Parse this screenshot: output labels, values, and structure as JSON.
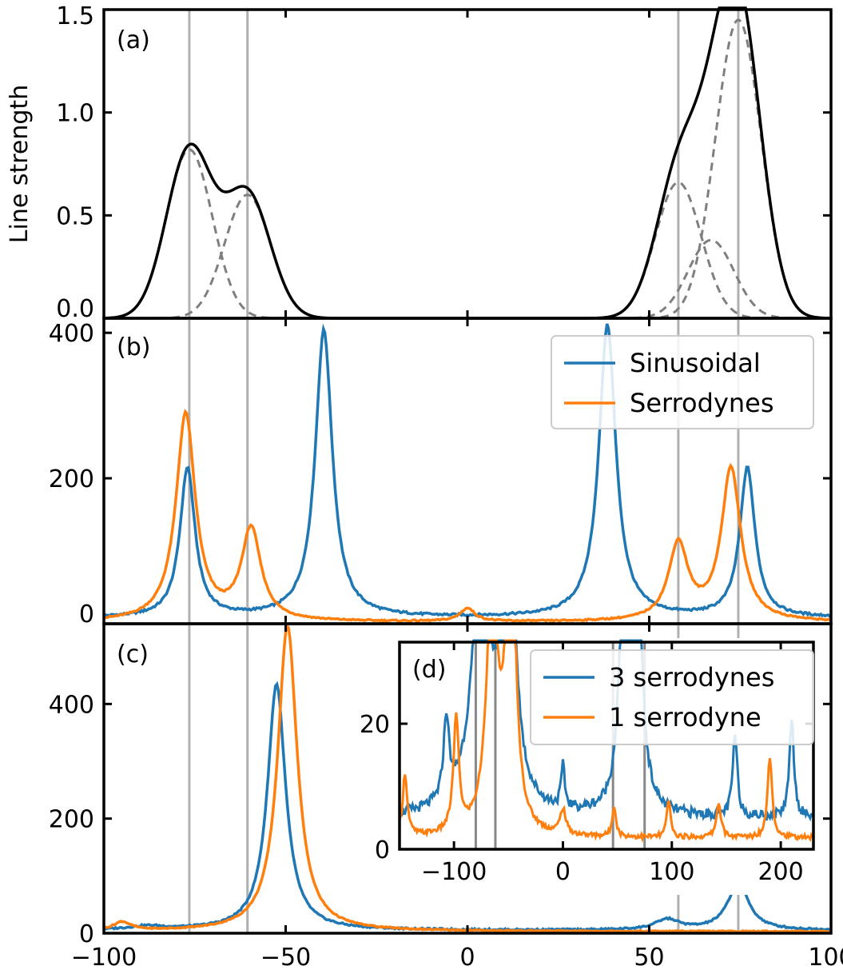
{
  "chart_data": [
    {
      "panel_label": "(a)",
      "type": "line",
      "ylabel": "Line strength",
      "xlim": [
        -100,
        100
      ],
      "ylim": [
        0,
        1.5
      ],
      "yticks": [
        0.0,
        0.5,
        1.0,
        1.5
      ],
      "ytick_labels": [
        "0.0",
        "0.5",
        "1.0",
        "1.5"
      ],
      "vlines": [
        -76.5,
        -60.5,
        58,
        74.5
      ],
      "components": [
        {
          "center": -76.5,
          "amplitude": 0.82,
          "sigma": 6.3
        },
        {
          "center": -60.5,
          "amplitude": 0.6,
          "sigma": 6.3
        },
        {
          "center": 58,
          "amplitude": 0.66,
          "sigma": 6.3
        },
        {
          "center": 67,
          "amplitude": 0.38,
          "sigma": 6.3
        },
        {
          "center": 74.5,
          "amplitude": 1.45,
          "sigma": 6.3
        }
      ],
      "series": [
        {
          "role": "sum",
          "color": "#000000",
          "style": "solid"
        },
        {
          "role": "components",
          "color": "#7f7f7f",
          "style": "dashed"
        }
      ]
    },
    {
      "panel_label": "(b)",
      "type": "line",
      "xlim": [
        -100,
        100
      ],
      "ylim": [
        0,
        420
      ],
      "yticks": [
        0,
        200,
        400
      ],
      "ytick_labels": [
        "0",
        "200",
        "400"
      ],
      "vlines": [
        -76.5,
        -60.5,
        58,
        74.5
      ],
      "legend": {
        "placement": "top-right"
      },
      "series": [
        {
          "name": "Sinusoidal",
          "color": "#1f77b4",
          "baseline": 8,
          "peaks": [
            {
              "center": -77,
              "height": 205,
              "width": 2.5
            },
            {
              "center": -39.5,
              "height": 395,
              "width": 2.8
            },
            {
              "center": 38.5,
              "height": 402,
              "width": 2.8
            },
            {
              "center": 77,
              "height": 205,
              "width": 2.5
            }
          ]
        },
        {
          "name": "Serrodynes",
          "color": "#ff7f0e",
          "baseline": 2,
          "peaks": [
            {
              "center": -77.5,
              "height": 285,
              "width": 3.2
            },
            {
              "center": -59.5,
              "height": 125,
              "width": 3.2
            },
            {
              "center": 0,
              "height": 18,
              "width": 2.5
            },
            {
              "center": 58,
              "height": 105,
              "width": 3.2
            },
            {
              "center": 72.5,
              "height": 210,
              "width": 3.2
            }
          ]
        }
      ]
    },
    {
      "panel_label": "(c)",
      "type": "line",
      "xlim": [
        -100,
        100
      ],
      "ylim": [
        0,
        540
      ],
      "yticks": [
        0,
        200,
        400
      ],
      "ytick_labels": [
        "0",
        "200",
        "400"
      ],
      "xticks": [
        -100,
        -50,
        0,
        50,
        100
      ],
      "xtick_labels": [
        "−100",
        "−50",
        "0",
        "50",
        100
      ],
      "vlines": [
        -76.5,
        -60.5,
        58,
        74.5
      ],
      "series": [
        {
          "name": "3 serrodynes",
          "color": "#1f77b4",
          "baseline": 5,
          "peaks": [
            {
              "center": -52.5,
              "height": 430,
              "width": 3.0
            },
            {
              "center": -88,
              "height": 6,
              "width": 6
            },
            {
              "center": 55,
              "height": 18,
              "width": 4
            },
            {
              "center": 74.5,
              "height": 82,
              "width": 3.5
            }
          ]
        },
        {
          "name": "1 serrodyne",
          "color": "#ff7f0e",
          "baseline": 3,
          "peaks": [
            {
              "center": -49.5,
              "height": 535,
              "width": 3.2
            },
            {
              "center": -95,
              "height": 15,
              "width": 3
            }
          ]
        }
      ]
    },
    {
      "panel_label": "(d)",
      "type": "line",
      "inset_of": "(c)",
      "xlim": [
        -150,
        230
      ],
      "ylim": [
        0,
        33
      ],
      "yticks": [
        0,
        20
      ],
      "ytick_labels": [
        "0",
        "20"
      ],
      "xticks": [
        -100,
        0,
        100,
        200
      ],
      "xtick_labels": [
        "−100",
        "0",
        "100",
        "200"
      ],
      "vlines": [
        -80,
        -62,
        46,
        75
      ],
      "legend": {
        "placement": "top-right"
      },
      "series": [
        {
          "name": "3 serrodynes",
          "color": "#1f77b4",
          "baseline": 5,
          "peaks": [
            {
              "center": -107,
              "height": 13,
              "width": 3
            },
            {
              "center": -75,
              "height": 40,
              "width": 10
            },
            {
              "center": -50,
              "height": 60,
              "width": 6
            },
            {
              "center": 0,
              "height": 6.5,
              "width": 2
            },
            {
              "center": 55,
              "height": 30,
              "width": 5
            },
            {
              "center": 68,
              "height": 45,
              "width": 5
            },
            {
              "center": 158,
              "height": 13,
              "width": 2.5
            },
            {
              "center": 210,
              "height": 16,
              "width": 2.5
            }
          ]
        },
        {
          "name": "1 serrodyne",
          "color": "#ff7f0e",
          "baseline": 1.8,
          "peaks": [
            {
              "center": -145,
              "height": 10,
              "width": 2.5
            },
            {
              "center": -98,
              "height": 18,
              "width": 3
            },
            {
              "center": -65,
              "height": 40,
              "width": 6
            },
            {
              "center": -48,
              "height": 60,
              "width": 4.5
            },
            {
              "center": 0,
              "height": 4,
              "width": 3
            },
            {
              "center": 47,
              "height": 5,
              "width": 2
            },
            {
              "center": 97,
              "height": 6,
              "width": 2
            },
            {
              "center": 143,
              "height": 5.5,
              "width": 2.5
            },
            {
              "center": 190,
              "height": 13,
              "width": 2.5
            }
          ]
        }
      ]
    }
  ]
}
